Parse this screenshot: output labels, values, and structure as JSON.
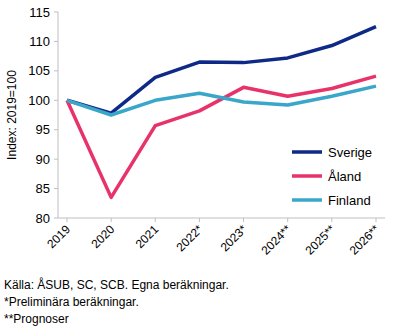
{
  "chart_data": {
    "type": "line",
    "y_label": "Index: 2019=100",
    "categories": [
      "2019",
      "2020",
      "2021",
      "2022*",
      "2023*",
      "2024**",
      "2025**",
      "2026**"
    ],
    "series": [
      {
        "name": "Sverige",
        "color": "#0e2a86",
        "values": [
          100,
          97.8,
          103.9,
          106.5,
          106.4,
          107.2,
          109.3,
          112.5
        ]
      },
      {
        "name": "Åland",
        "color": "#e8336a",
        "values": [
          100,
          83.5,
          95.7,
          98.2,
          102.2,
          100.7,
          102.0,
          104.1
        ]
      },
      {
        "name": "Finland",
        "color": "#3aa6c9",
        "values": [
          100,
          97.5,
          100.0,
          101.2,
          99.7,
          99.2,
          100.7,
          102.4
        ]
      }
    ],
    "ylim": [
      80,
      115
    ],
    "yticks": [
      80,
      85,
      90,
      95,
      100,
      105,
      110,
      115
    ],
    "legend": "lower right",
    "annotations": [
      "Källa: ÅSUB, SC, SCB. Egna beräkningar.",
      "*Preliminära beräkningar.",
      "**Prognoser"
    ]
  }
}
